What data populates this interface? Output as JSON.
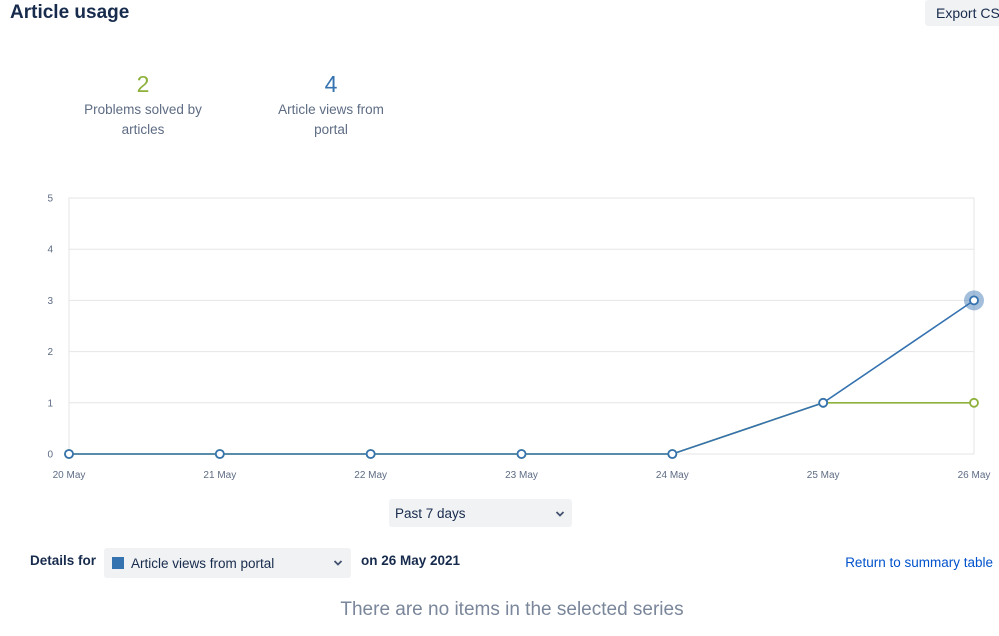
{
  "header": {
    "title": "Article usage",
    "export_label": "Export CSV"
  },
  "stats": {
    "problems_solved": {
      "value": "2",
      "label_line1": "Problems solved by",
      "label_line2": "articles"
    },
    "article_views": {
      "value": "4",
      "label_line1": "Article views from",
      "label_line2": "portal"
    }
  },
  "chart_data": {
    "type": "line",
    "categories": [
      "20 May",
      "21 May",
      "22 May",
      "23 May",
      "24 May",
      "25 May",
      "26 May"
    ],
    "series": [
      {
        "name": "Problems solved by articles",
        "color": "#8db13b",
        "values": [
          0,
          0,
          0,
          0,
          0,
          1,
          1
        ]
      },
      {
        "name": "Article views from portal",
        "color": "#3572b0",
        "values": [
          0,
          0,
          0,
          0,
          0,
          1,
          3
        ]
      }
    ],
    "ylim": [
      0,
      5
    ],
    "yticks": [
      0,
      1,
      2,
      3,
      4,
      5
    ],
    "grid": true,
    "highlighted_point": {
      "series": "Article views from portal",
      "category": "26 May"
    }
  },
  "controls": {
    "range_value": "Past 7 days",
    "details_label": "Details for",
    "series_value": "Article views from portal",
    "date_text": "on 26 May 2021",
    "return_link": "Return to summary table"
  },
  "empty_message": "There are no items in the selected series"
}
